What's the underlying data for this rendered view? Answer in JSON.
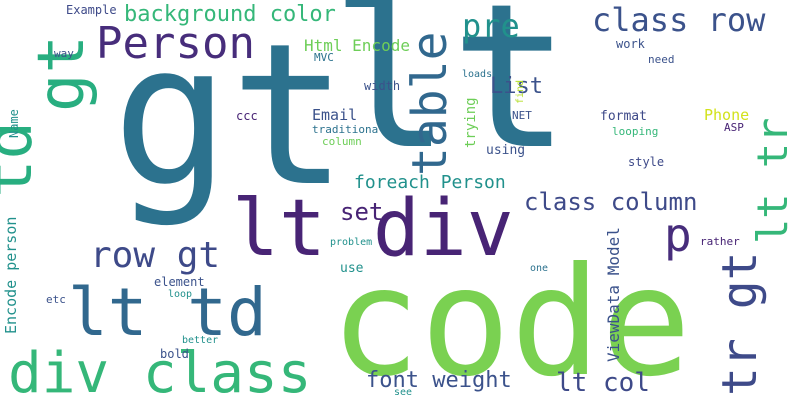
{
  "palette": {
    "dark_purple": "#472d7b",
    "deep_purple": "#482475",
    "indigo": "#3b528b",
    "slate_blue": "#3e4a89",
    "steel_blue": "#2c728e",
    "teal_blue": "#31688e",
    "teal": "#21918c",
    "sea_green": "#28ae80",
    "green": "#35b779",
    "light_green": "#6ece58",
    "lime": "#7ad151",
    "yellow": "#b5de2b",
    "yellow_bright": "#d2e21b"
  },
  "words": [
    {
      "text": "lt",
      "color": "#2c728e"
    },
    {
      "text": "gt",
      "color": "#2c728e"
    },
    {
      "text": "code",
      "color": "#7ad151"
    },
    {
      "text": "lt div",
      "color": "#482475"
    },
    {
      "text": "td",
      "color": "#28ae80"
    },
    {
      "text": "gt",
      "color": "#28ae80"
    },
    {
      "text": "Person",
      "color": "#472d7b"
    },
    {
      "text": "table",
      "color": "#31688e"
    },
    {
      "text": "lt td",
      "color": "#31688e"
    },
    {
      "text": "div class",
      "color": "#35b779"
    },
    {
      "text": "tr gt",
      "color": "#3e4a89"
    },
    {
      "text": "lt tr",
      "color": "#35b779"
    },
    {
      "text": "class row",
      "color": "#3b528b"
    },
    {
      "text": "background color",
      "color": "#35b779"
    },
    {
      "text": "pre",
      "color": "#21918c"
    },
    {
      "text": "p",
      "color": "#472d7b"
    },
    {
      "text": "row gt",
      "color": "#3e4a89"
    },
    {
      "text": "List",
      "color": "#3b528b"
    },
    {
      "text": "class column",
      "color": "#3e4a89"
    },
    {
      "text": "set",
      "color": "#482475"
    },
    {
      "text": "foreach Person",
      "color": "#21918c"
    },
    {
      "text": "font weight",
      "color": "#3b528b"
    },
    {
      "text": "lt col",
      "color": "#3e4a89"
    },
    {
      "text": "Html Encode",
      "color": "#6ece58"
    },
    {
      "text": "Encode person",
      "color": "#21918c"
    },
    {
      "text": "ViewData Model",
      "color": "#3b528b"
    },
    {
      "text": "Email",
      "color": "#3b528b"
    },
    {
      "text": "Phone",
      "color": "#d2e21b"
    },
    {
      "text": "Example",
      "color": "#3e4a89"
    },
    {
      "text": "way",
      "color": "#3b528b"
    },
    {
      "text": "Name",
      "color": "#21918c"
    },
    {
      "text": "MVC",
      "color": "#2c728e"
    },
    {
      "text": "width",
      "color": "#3b528b"
    },
    {
      "text": "loads",
      "color": "#2c728e"
    },
    {
      "text": "find",
      "color": "#b5de2b"
    },
    {
      "text": "work",
      "color": "#3b528b"
    },
    {
      "text": "need",
      "color": "#3b528b"
    },
    {
      "text": "ccc",
      "color": "#482475"
    },
    {
      "text": "traditional",
      "color": "#2c728e"
    },
    {
      "text": "column",
      "color": "#6ece58"
    },
    {
      "text": "trying",
      "color": "#6ece58"
    },
    {
      "text": "NET",
      "color": "#3b528b"
    },
    {
      "text": "format",
      "color": "#3e4a89"
    },
    {
      "text": "looping",
      "color": "#35b779"
    },
    {
      "text": "ASP",
      "color": "#482475"
    },
    {
      "text": "using",
      "color": "#3b528b"
    },
    {
      "text": "style",
      "color": "#3e4a89"
    },
    {
      "text": "class",
      "color": "#3b528b"
    },
    {
      "text": "element",
      "color": "#3b528b"
    },
    {
      "text": "loop",
      "color": "#21918c"
    },
    {
      "text": "etc",
      "color": "#3b528b"
    },
    {
      "text": "problem",
      "color": "#21918c"
    },
    {
      "text": "use",
      "color": "#21918c"
    },
    {
      "text": "one",
      "color": "#2c728e"
    },
    {
      "text": "rather",
      "color": "#482475"
    },
    {
      "text": "better",
      "color": "#21918c"
    },
    {
      "text": "bold",
      "color": "#3b528b"
    },
    {
      "text": "see",
      "color": "#21918c"
    }
  ]
}
